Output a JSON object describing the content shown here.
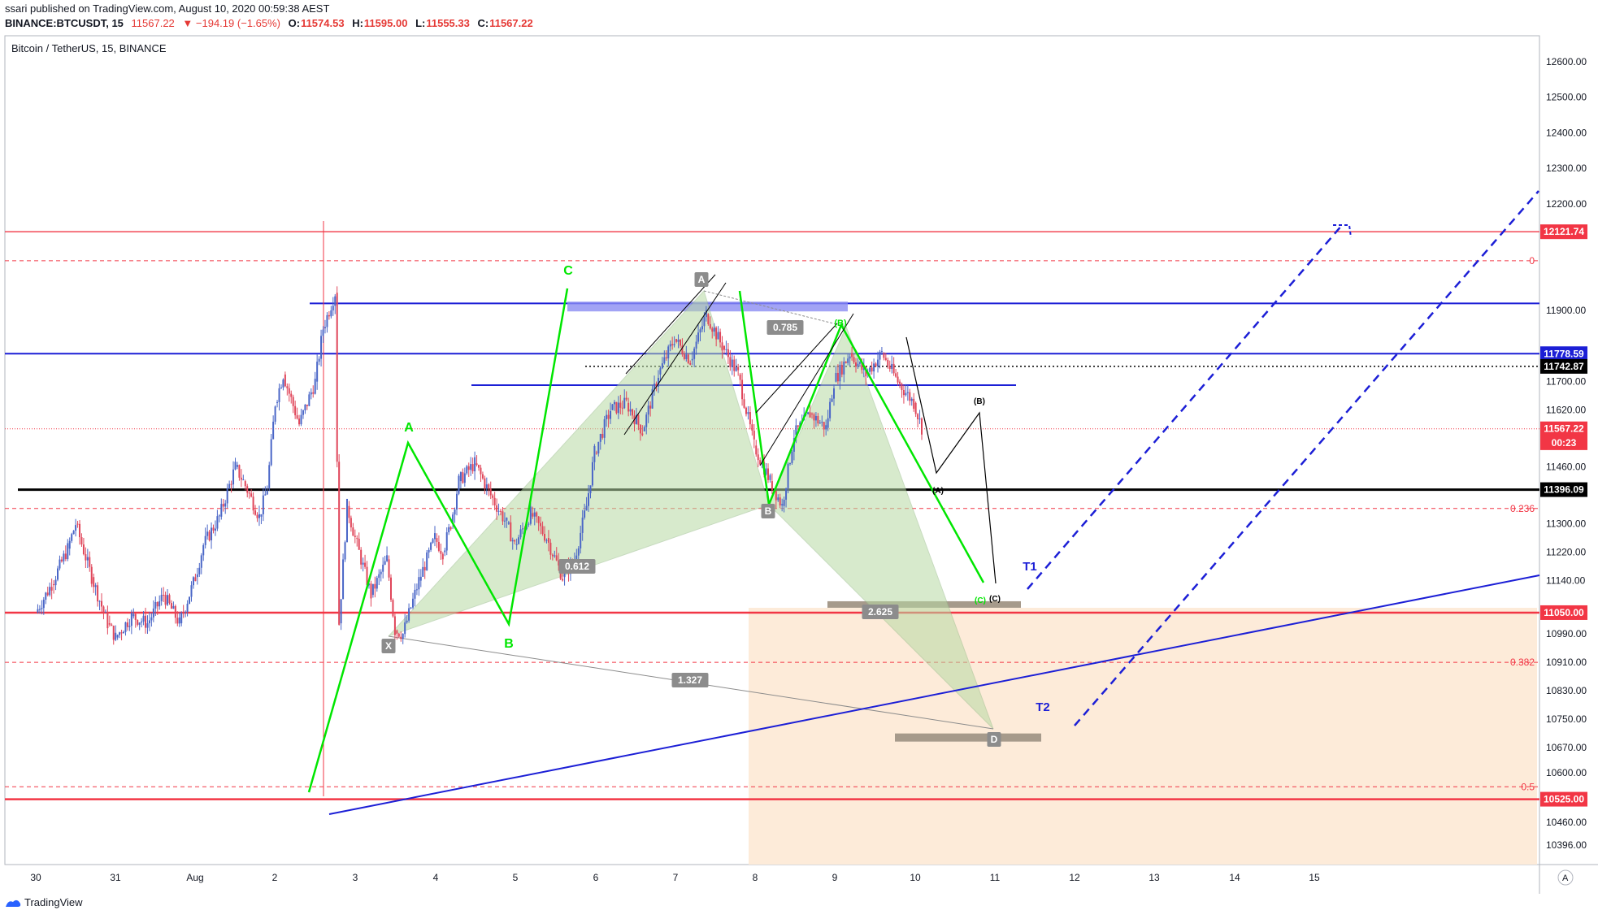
{
  "header": {
    "published_by": "ssari published on TradingView.com, August 10, 2020 00:59:38 AEST",
    "symbol": "BINANCE:BTCUSDT, 15",
    "last": "11567.22",
    "change": "▼ −194.19 (−1.65%)",
    "open_label": "O:",
    "open": "11574.53",
    "high_label": "H:",
    "high": "11595.00",
    "low_label": "L:",
    "low": "11555.33",
    "close_label": "C:",
    "close": "11567.22"
  },
  "chart_title": "Bitcoin / TetherUS, 15, BINANCE",
  "footer": {
    "brand": "TradingView"
  },
  "colors": {
    "red": "#f23645",
    "blue": "#1c1fd6",
    "green": "#00e600",
    "black": "#000000",
    "up": "#4a66c7",
    "down": "#e0465a",
    "harmonic_fill": "#b7d9a4",
    "zone_fill": "#fdebd9"
  },
  "chart_data": {
    "type": "candlestick",
    "x_ticks": [
      "30",
      "31",
      "Aug",
      "2",
      "3",
      "4",
      "5",
      "6",
      "7",
      "8",
      "9",
      "10",
      "11",
      "12",
      "13",
      "14",
      "15"
    ],
    "y_ticks": [
      12600.0,
      12500.0,
      12400.0,
      12300.0,
      12200.0,
      11900.0,
      11700.0,
      11620.0,
      11460.0,
      11300.0,
      11220.0,
      11140.0,
      10990.0,
      10910.0,
      10830.0,
      10750.0,
      10670.0,
      10600.0,
      10460.0,
      10396.0
    ],
    "price_tags": [
      {
        "label": "12121.74",
        "value": 12121.74,
        "color": "#f23645"
      },
      {
        "label": "11778.59",
        "value": 11778.59,
        "color": "#1c1fd6"
      },
      {
        "label": "11742.87",
        "value": 11742.87,
        "color": "#000000"
      },
      {
        "label": "11567.22",
        "value": 11567.22,
        "color": "#f23645"
      },
      {
        "label": "00:23",
        "value": 11528,
        "color": "#f23645"
      },
      {
        "label": "11396.09",
        "value": 11396.09,
        "color": "#000000"
      },
      {
        "label": "11050.00",
        "value": 11050.0,
        "color": "#f23645"
      },
      {
        "label": "10525.00",
        "value": 10525.0,
        "color": "#f23645"
      }
    ],
    "fib_levels": [
      {
        "label": "0",
        "value": 12040
      },
      {
        "label": "0.236",
        "value": 11343
      },
      {
        "label": "0.382",
        "value": 10910
      },
      {
        "label": "0.5",
        "value": 10560
      }
    ],
    "harmonic_ratios": [
      "0.785",
      "0.612",
      "2.625",
      "1.327"
    ],
    "xabcd_labels": [
      "X",
      "A",
      "B",
      "D"
    ],
    "wave_labels": [
      "A",
      "B",
      "C",
      "(B)",
      "(A)",
      "(C)"
    ],
    "targets": [
      "T1",
      "T2"
    ],
    "price_path": [
      [
        30,
        11050
      ],
      [
        30.2,
        11130
      ],
      [
        30.4,
        11230
      ],
      [
        30.5,
        11300
      ],
      [
        30.7,
        11150
      ],
      [
        30.9,
        11020
      ],
      [
        31.0,
        10980
      ],
      [
        31.2,
        11040
      ],
      [
        31.4,
        11020
      ],
      [
        31.6,
        11100
      ],
      [
        31.8,
        11020
      ],
      [
        32.0,
        11150
      ],
      [
        32.1,
        11240
      ],
      [
        32.3,
        11320
      ],
      [
        32.5,
        11460
      ],
      [
        32.6,
        11420
      ],
      [
        32.8,
        11320
      ],
      [
        32.9,
        11400
      ],
      [
        33.0,
        11640
      ],
      [
        33.1,
        11720
      ],
      [
        33.3,
        11580
      ],
      [
        33.5,
        11700
      ],
      [
        33.6,
        11850
      ],
      [
        33.75,
        11950
      ],
      [
        33.8,
        11020
      ],
      [
        33.9,
        11350
      ],
      [
        34.0,
        11260
      ],
      [
        34.2,
        11100
      ],
      [
        34.4,
        11200
      ],
      [
        34.5,
        11000
      ],
      [
        34.6,
        10990
      ],
      [
        34.8,
        11140
      ],
      [
        35.0,
        11260
      ],
      [
        35.1,
        11220
      ],
      [
        35.2,
        11300
      ],
      [
        35.3,
        11420
      ],
      [
        35.5,
        11470
      ],
      [
        35.7,
        11380
      ],
      [
        35.9,
        11300
      ],
      [
        36.0,
        11240
      ],
      [
        36.2,
        11330
      ],
      [
        36.4,
        11260
      ],
      [
        36.6,
        11150
      ],
      [
        36.75,
        11200
      ],
      [
        36.9,
        11350
      ],
      [
        37.0,
        11500
      ],
      [
        37.2,
        11620
      ],
      [
        37.4,
        11640
      ],
      [
        37.6,
        11560
      ],
      [
        37.8,
        11720
      ],
      [
        38.0,
        11820
      ],
      [
        38.2,
        11760
      ],
      [
        38.4,
        11890
      ],
      [
        38.6,
        11800
      ],
      [
        38.8,
        11720
      ],
      [
        39.0,
        11520
      ],
      [
        39.2,
        11420
      ],
      [
        39.35,
        11350
      ],
      [
        39.5,
        11550
      ],
      [
        39.7,
        11610
      ],
      [
        39.9,
        11570
      ],
      [
        40.0,
        11700
      ],
      [
        40.2,
        11780
      ],
      [
        40.4,
        11720
      ],
      [
        40.6,
        11780
      ],
      [
        40.8,
        11700
      ],
      [
        41.0,
        11640
      ],
      [
        41.1,
        11570
      ]
    ]
  }
}
